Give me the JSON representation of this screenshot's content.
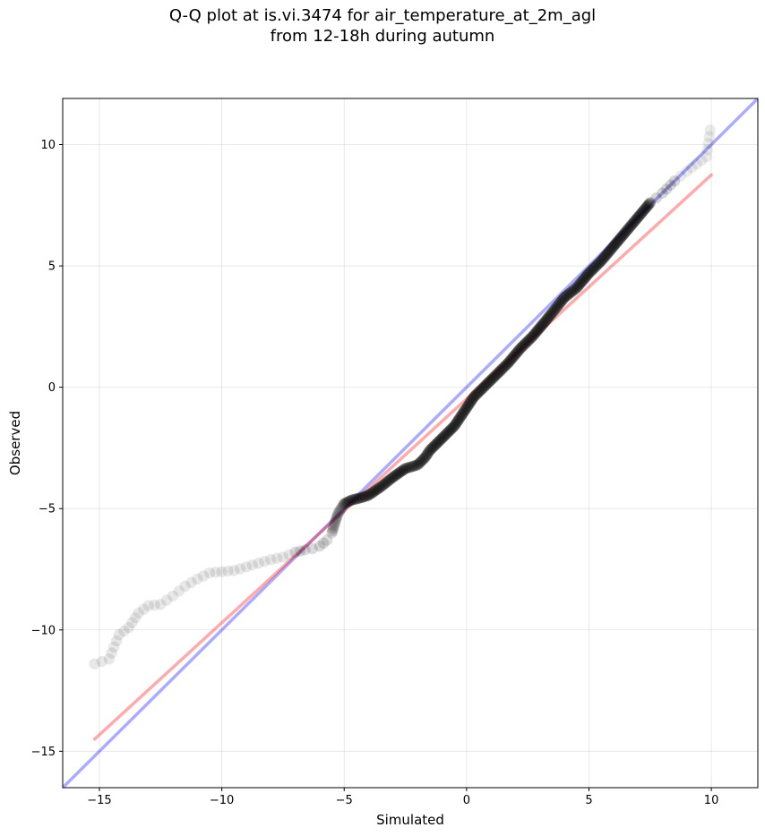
{
  "chart_data": {
    "type": "scatter",
    "title": "Q-Q plot at is.vi.3474 for air_temperature_at_2m_agl",
    "subtitle": "from 12-18h during autumn",
    "xlabel": "Simulated",
    "ylabel": "Observed",
    "xlim": [
      -16.5,
      11.9
    ],
    "ylim": [
      -16.5,
      11.9
    ],
    "grid": true,
    "x_ticks": [
      -15,
      -10,
      -5,
      0,
      5,
      10
    ],
    "y_ticks": [
      -15,
      -10,
      -5,
      0,
      5,
      10
    ],
    "x_tick_labels": [
      "−15",
      "−10",
      "−5",
      "0",
      "5",
      "10"
    ],
    "y_tick_labels": [
      "−15",
      "−10",
      "−5",
      "0",
      "5",
      "10"
    ],
    "lines": [
      {
        "role": "identity",
        "color": "#0000ff",
        "opacity": 0.33,
        "points": [
          [
            -16.5,
            -16.5
          ],
          [
            11.9,
            11.9
          ]
        ]
      },
      {
        "role": "fit",
        "color": "#ff0000",
        "opacity": 0.33,
        "points": [
          [
            -15.2,
            -14.5
          ],
          [
            10.0,
            8.75
          ]
        ]
      }
    ],
    "quantile_path": [
      [
        -15.2,
        -11.4
      ],
      [
        -14.6,
        -11.2
      ],
      [
        -14.2,
        -10.2
      ],
      [
        -13.8,
        -9.9
      ],
      [
        -13.4,
        -9.3
      ],
      [
        -13.0,
        -9.0
      ],
      [
        -12.5,
        -8.95
      ],
      [
        -12.0,
        -8.6
      ],
      [
        -11.5,
        -8.2
      ],
      [
        -11.0,
        -7.9
      ],
      [
        -10.5,
        -7.65
      ],
      [
        -10.0,
        -7.6
      ],
      [
        -9.5,
        -7.55
      ],
      [
        -9.0,
        -7.4
      ],
      [
        -8.5,
        -7.25
      ],
      [
        -8.0,
        -7.1
      ],
      [
        -7.5,
        -7.0
      ],
      [
        -7.0,
        -6.8
      ],
      [
        -6.6,
        -6.7
      ],
      [
        -6.3,
        -6.65
      ],
      [
        -6.0,
        -6.55
      ],
      [
        -5.7,
        -6.3
      ],
      [
        -5.5,
        -6.0
      ],
      [
        -5.35,
        -5.5
      ],
      [
        -5.25,
        -5.2
      ],
      [
        -5.0,
        -4.8
      ],
      [
        -4.7,
        -4.65
      ],
      [
        -4.3,
        -4.55
      ],
      [
        -4.0,
        -4.45
      ],
      [
        -3.5,
        -4.1
      ],
      [
        -3.0,
        -3.7
      ],
      [
        -2.5,
        -3.35
      ],
      [
        -2.0,
        -3.2
      ],
      [
        -1.7,
        -2.9
      ],
      [
        -1.5,
        -2.6
      ],
      [
        -1.0,
        -2.1
      ],
      [
        -0.5,
        -1.6
      ],
      [
        -0.1,
        -1.0
      ],
      [
        0.3,
        -0.4
      ],
      [
        0.7,
        0.0
      ],
      [
        1.2,
        0.5
      ],
      [
        1.7,
        1.0
      ],
      [
        2.2,
        1.6
      ],
      [
        2.7,
        2.1
      ],
      [
        3.2,
        2.7
      ],
      [
        3.6,
        3.2
      ],
      [
        4.0,
        3.7
      ],
      [
        4.5,
        4.1
      ],
      [
        5.0,
        4.7
      ],
      [
        5.5,
        5.2
      ],
      [
        6.0,
        5.8
      ],
      [
        6.5,
        6.4
      ],
      [
        7.0,
        7.0
      ],
      [
        7.5,
        7.6
      ],
      [
        8.0,
        8.0
      ],
      [
        8.5,
        8.5
      ],
      [
        9.0,
        8.9
      ],
      [
        9.4,
        9.2
      ],
      [
        9.8,
        9.5
      ],
      [
        9.95,
        10.6
      ]
    ],
    "point_color": "#000000"
  }
}
